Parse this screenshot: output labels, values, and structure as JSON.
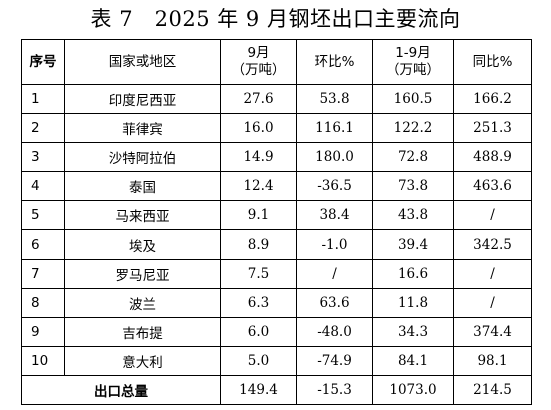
{
  "title": "表 7   2025 年 9 月钢坯出口主要流向",
  "headers": {
    "seq": "序号",
    "region": "国家或地区",
    "sep_line1": "9月",
    "sep_line2": "（万吨）",
    "mom": "环比%",
    "ytd_line1": "1-9月",
    "ytd_line2": "（万吨）",
    "yoy": "同比%"
  },
  "rows": [
    {
      "seq": "1",
      "region": "印度尼西亚",
      "sep": "27.6",
      "mom": "53.8",
      "ytd": "160.5",
      "yoy": "166.2"
    },
    {
      "seq": "2",
      "region": "菲律宾",
      "sep": "16.0",
      "mom": "116.1",
      "ytd": "122.2",
      "yoy": "251.3"
    },
    {
      "seq": "3",
      "region": "沙特阿拉伯",
      "sep": "14.9",
      "mom": "180.0",
      "ytd": "72.8",
      "yoy": "488.9"
    },
    {
      "seq": "4",
      "region": "泰国",
      "sep": "12.4",
      "mom": "-36.5",
      "ytd": "73.8",
      "yoy": "463.6"
    },
    {
      "seq": "5",
      "region": "马来西亚",
      "sep": "9.1",
      "mom": "38.4",
      "ytd": "43.8",
      "yoy": "/"
    },
    {
      "seq": "6",
      "region": "埃及",
      "sep": "8.9",
      "mom": "-1.0",
      "ytd": "39.4",
      "yoy": "342.5"
    },
    {
      "seq": "7",
      "region": "罗马尼亚",
      "sep": "7.5",
      "mom": "/",
      "ytd": "16.6",
      "yoy": "/"
    },
    {
      "seq": "8",
      "region": "波兰",
      "sep": "6.3",
      "mom": "63.6",
      "ytd": "11.8",
      "yoy": "/"
    },
    {
      "seq": "9",
      "region": "吉布提",
      "sep": "6.0",
      "mom": "-48.0",
      "ytd": "34.3",
      "yoy": "374.4"
    },
    {
      "seq": "10",
      "region": "意大利",
      "sep": "5.0",
      "mom": "-74.9",
      "ytd": "84.1",
      "yoy": "98.1"
    }
  ],
  "total": {
    "label": "出口总量",
    "sep": "149.4",
    "mom": "-15.3",
    "ytd": "1073.0",
    "yoy": "214.5"
  }
}
